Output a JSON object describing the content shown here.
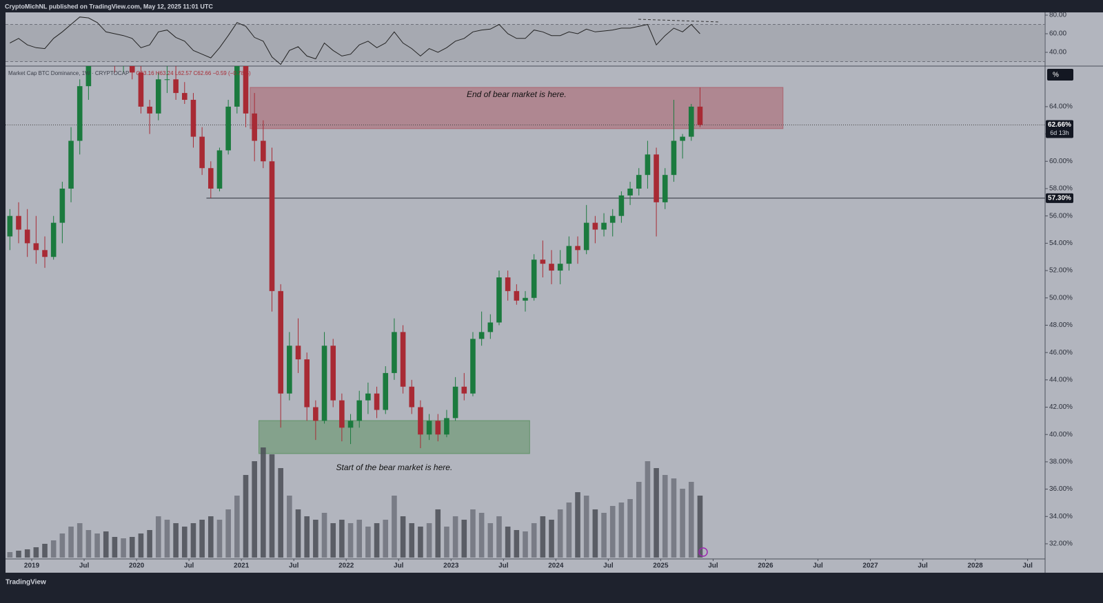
{
  "header": "CryptoMichNL published on TradingView.com, May 12, 2025 11:01 UTC",
  "footer": "TradingView",
  "chart_data": {
    "type": "candlestick",
    "title": "Market Cap BTC Dominance, 1W · CRYPTOCAP",
    "ohlc_legend": "O63.16 H63.24 L62.57 C62.66 −0.59 (−0.78%)",
    "unit_button": "%",
    "up_color": "#1b7a3e",
    "down_color": "#a82a34",
    "x": [
      "2018-10",
      "2018-11",
      "2018-12",
      "2019-01",
      "2019-02",
      "2019-03",
      "2019-04",
      "2019-05",
      "2019-06",
      "2019-07",
      "2019-08",
      "2019-09",
      "2019-10",
      "2019-11",
      "2019-12",
      "2020-01",
      "2020-02",
      "2020-03",
      "2020-04",
      "2020-05",
      "2020-06",
      "2020-07",
      "2020-08",
      "2020-09",
      "2020-10",
      "2020-11",
      "2020-12",
      "2021-01",
      "2021-02",
      "2021-03",
      "2021-04",
      "2021-05",
      "2021-06",
      "2021-07",
      "2021-08",
      "2021-09",
      "2021-10",
      "2021-11",
      "2021-12",
      "2022-01",
      "2022-02",
      "2022-03",
      "2022-04",
      "2022-05",
      "2022-06",
      "2022-07",
      "2022-08",
      "2022-09",
      "2022-10",
      "2022-11",
      "2022-12",
      "2023-01",
      "2023-02",
      "2023-03",
      "2023-04",
      "2023-05",
      "2023-06",
      "2023-07",
      "2023-08",
      "2023-09",
      "2023-10",
      "2023-11",
      "2023-12",
      "2024-01",
      "2024-02",
      "2024-03",
      "2024-04",
      "2024-05",
      "2024-06",
      "2024-07",
      "2024-08",
      "2024-09",
      "2024-10",
      "2024-11",
      "2024-12",
      "2025-01",
      "2025-02",
      "2025-03",
      "2025-04",
      "2025-05"
    ],
    "open": [
      54.5,
      56,
      55,
      54,
      53.5,
      53,
      55.5,
      58,
      61.5,
      65.5,
      68.5,
      69.8,
      69,
      67.5,
      67.5,
      66.5,
      64,
      63.5,
      66,
      66,
      65,
      64.5,
      61.8,
      59.5,
      58,
      60.8,
      64,
      67.5,
      63.5,
      61.5,
      60,
      50.5,
      43,
      46.5,
      45.5,
      42,
      41,
      46.5,
      42.5,
      40.5,
      41,
      42.5,
      43,
      41.8,
      44.5,
      47.5,
      43.5,
      42,
      40,
      41,
      40,
      41.2,
      43.5,
      43,
      47,
      47.5,
      48.2,
      51.5,
      50.5,
      49.8,
      50,
      52.8,
      52.5,
      52,
      52.5,
      53.8,
      53.5,
      55.5,
      55,
      55.5,
      56,
      57.5,
      58,
      59,
      60.5,
      57,
      59,
      61.5,
      61.8,
      64
    ],
    "high": [
      56.5,
      57,
      56.5,
      56,
      54.5,
      56,
      58.5,
      62.5,
      66,
      69.5,
      70.5,
      71,
      69.5,
      68.5,
      68.5,
      67.5,
      64.5,
      66.5,
      67.5,
      67,
      65.8,
      65,
      62.5,
      60,
      61,
      64.5,
      68,
      69.5,
      65,
      63,
      61,
      51,
      47.5,
      48.5,
      46,
      42.5,
      47.5,
      47,
      43,
      41.5,
      43.2,
      43.8,
      43.5,
      45,
      48.5,
      48,
      44,
      42.5,
      41.5,
      41.5,
      41.8,
      44.2,
      44.5,
      47.5,
      49,
      48.8,
      52,
      52,
      51,
      50.5,
      53.2,
      54.2,
      53.5,
      53.5,
      54.5,
      54.5,
      56.8,
      56,
      56.2,
      56.5,
      57.8,
      58.5,
      59.5,
      61.5,
      61,
      59.5,
      64.5,
      62,
      64.2,
      65.4
    ],
    "low": [
      53.5,
      54,
      53,
      52.5,
      52.2,
      52.8,
      54,
      57,
      60.5,
      64.5,
      67.5,
      68,
      66.5,
      66.5,
      66,
      63.5,
      62,
      63,
      65,
      64.5,
      64.2,
      61,
      59,
      57.3,
      57.8,
      60.5,
      63.5,
      62.5,
      60,
      59.5,
      49,
      40.5,
      42.5,
      44.5,
      41,
      39.6,
      40.8,
      42,
      39.5,
      39.3,
      40.5,
      41.5,
      41.2,
      41.5,
      44,
      43,
      41.5,
      39,
      39.6,
      39.5,
      39.8,
      41,
      42.5,
      42.8,
      46.5,
      47,
      48,
      49.8,
      49.5,
      49,
      49.8,
      51.5,
      51,
      51,
      52,
      52.5,
      53.2,
      54,
      54.5,
      54.5,
      55.5,
      56.8,
      57.5,
      58,
      54.5,
      56.5,
      58.5,
      60.2,
      61.5,
      62.5
    ],
    "close": [
      56,
      55,
      54,
      53.5,
      53,
      55.5,
      58,
      61.5,
      65.5,
      68.5,
      69.8,
      69,
      67.5,
      67.5,
      66.5,
      64,
      63.5,
      66,
      66,
      65,
      64.5,
      61.8,
      59.5,
      58,
      60.8,
      64,
      67.5,
      63.5,
      61.5,
      60,
      50.5,
      43,
      46.5,
      45.5,
      42,
      41,
      46.5,
      42.5,
      40.5,
      41,
      42.5,
      43,
      41.8,
      44.5,
      47.5,
      43.5,
      42,
      40,
      41,
      40,
      41.2,
      43.5,
      43,
      47,
      47.5,
      48.2,
      51.5,
      50.5,
      49.8,
      50,
      52.8,
      52.5,
      52,
      52.5,
      53.8,
      53.5,
      55.5,
      55,
      55.5,
      56,
      57.5,
      58,
      59,
      60.5,
      57,
      59,
      61.5,
      61.8,
      64,
      62.66
    ],
    "volume": [
      8,
      10,
      12,
      15,
      20,
      25,
      35,
      45,
      50,
      40,
      35,
      38,
      30,
      28,
      30,
      35,
      40,
      60,
      55,
      50,
      45,
      50,
      55,
      60,
      55,
      70,
      90,
      120,
      140,
      160,
      150,
      130,
      90,
      70,
      60,
      55,
      65,
      50,
      55,
      50,
      55,
      45,
      50,
      55,
      90,
      60,
      50,
      45,
      50,
      70,
      45,
      60,
      55,
      70,
      65,
      50,
      60,
      45,
      40,
      38,
      50,
      60,
      55,
      70,
      80,
      95,
      90,
      70,
      65,
      75,
      80,
      85,
      110,
      140,
      130,
      120,
      115,
      100,
      110,
      90
    ],
    "ylim": [
      30.89,
      66.97
    ],
    "yticks": [
      {
        "value": 32,
        "label": "32.00%"
      },
      {
        "value": 34,
        "label": "34.00%"
      },
      {
        "value": 36,
        "label": "36.00%"
      },
      {
        "value": 38,
        "label": "38.00%"
      },
      {
        "value": 40,
        "label": "40.00%"
      },
      {
        "value": 42,
        "label": "42.00%"
      },
      {
        "value": 44,
        "label": "44.00%"
      },
      {
        "value": 46,
        "label": "46.00%"
      },
      {
        "value": 48,
        "label": "48.00%"
      },
      {
        "value": 50,
        "label": "50.00%"
      },
      {
        "value": 52,
        "label": "52.00%"
      },
      {
        "value": 54,
        "label": "54.00%"
      },
      {
        "value": 56,
        "label": "56.00%"
      },
      {
        "value": 58,
        "label": "58.00%"
      },
      {
        "value": 60,
        "label": "60.00%"
      },
      {
        "value": 62,
        "label": "62.00%"
      },
      {
        "value": 64,
        "label": "64.00%"
      }
    ],
    "xlim": [
      "2018-10",
      "2028-09"
    ],
    "xticks": [
      {
        "value": "2019-01",
        "label": "2019"
      },
      {
        "value": "2019-07",
        "label": "Jul"
      },
      {
        "value": "2020-01",
        "label": "2020"
      },
      {
        "value": "2020-07",
        "label": "Jul"
      },
      {
        "value": "2021-01",
        "label": "2021"
      },
      {
        "value": "2021-07",
        "label": "Jul"
      },
      {
        "value": "2022-01",
        "label": "2022"
      },
      {
        "value": "2022-07",
        "label": "Jul"
      },
      {
        "value": "2023-01",
        "label": "2023"
      },
      {
        "value": "2023-07",
        "label": "Jul"
      },
      {
        "value": "2024-01",
        "label": "2024"
      },
      {
        "value": "2024-07",
        "label": "Jul"
      },
      {
        "value": "2025-01",
        "label": "2025"
      },
      {
        "value": "2025-07",
        "label": "Jul"
      },
      {
        "value": "2026-01",
        "label": "2026"
      },
      {
        "value": "2026-07",
        "label": "Jul"
      },
      {
        "value": "2027-01",
        "label": "2027"
      },
      {
        "value": "2027-07",
        "label": "Jul"
      },
      {
        "value": "2028-01",
        "label": "2028"
      },
      {
        "value": "2028-07",
        "label": "Jul"
      }
    ],
    "grid": false,
    "zones": [
      {
        "from": "2021-02",
        "to": "2026-03",
        "low": 62.39,
        "high": 65.41,
        "color": "#a8323f",
        "label": "End of bear market is here.",
        "label_side": "top"
      },
      {
        "from": "2021-03",
        "to": "2023-10",
        "low": 38.6,
        "high": 41.02,
        "color": "#2e7d32",
        "label": "Start of the bear market is here.",
        "label_side": "bottom"
      }
    ],
    "price_line": {
      "from": "2020-09",
      "value": 57.3,
      "label": "57.30%"
    },
    "last_price": {
      "value": 62.66,
      "label": "62.66%",
      "countdown": "6d 13h"
    },
    "indicator": {
      "type": "line",
      "color": "#222222",
      "values": [
        50,
        55,
        48,
        45,
        44,
        55,
        62,
        70,
        78,
        77,
        72,
        62,
        60,
        58,
        55,
        45,
        48,
        62,
        64,
        56,
        52,
        42,
        38,
        34,
        45,
        58,
        72,
        68,
        56,
        52,
        35,
        27,
        42,
        46,
        36,
        33,
        50,
        42,
        36,
        38,
        48,
        52,
        45,
        50,
        62,
        50,
        44,
        36,
        44,
        40,
        45,
        52,
        55,
        62,
        64,
        65,
        70,
        60,
        55,
        55,
        64,
        62,
        58,
        58,
        62,
        60,
        65,
        62,
        63,
        64,
        66,
        66,
        68,
        70,
        48,
        58,
        66,
        62,
        70,
        60
      ],
      "ylim": [
        25.2,
        82.96
      ],
      "band": [
        30,
        70
      ],
      "yticks": [
        {
          "value": 40,
          "label": "40.00"
        },
        {
          "value": 60,
          "label": "60.00"
        },
        {
          "value": 80,
          "label": "80.00"
        }
      ]
    }
  }
}
